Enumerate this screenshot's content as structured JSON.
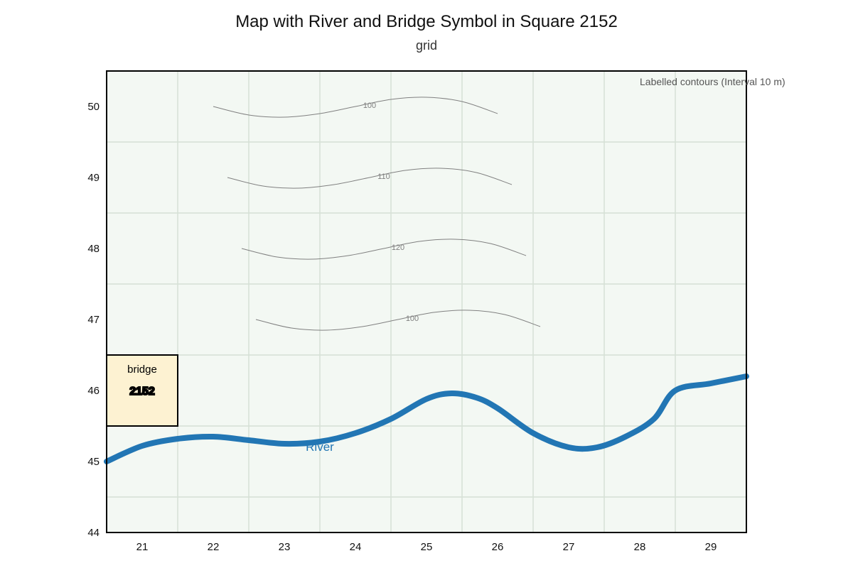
{
  "title": "Map with River and Bridge Symbol in Square 2152",
  "subtitle": "grid",
  "legend_note": "Labelled contours (Interval 10 m)",
  "colors": {
    "map_background": "#f3f8f3",
    "grid": "#d6e0d6",
    "frame": "#000000",
    "river": "#2276b4",
    "river_label": "#2276b4",
    "contour": "#808080",
    "bridge_fill": "#fdf2d2"
  },
  "chart_data": {
    "type": "map",
    "title": "Map with River and Bridge Symbol in Square 2152",
    "subtitle": "grid",
    "x_ticks": [
      "21",
      "22",
      "23",
      "24",
      "25",
      "26",
      "27",
      "28",
      "29"
    ],
    "y_ticks": [
      "44",
      "45",
      "46",
      "47",
      "48",
      "49",
      "50"
    ],
    "xlim": [
      20.5,
      29.5
    ],
    "ylim": [
      44,
      50.5
    ],
    "grid": true,
    "contours": [
      {
        "label": "100",
        "label_x": 24.2,
        "points": [
          [
            22.0,
            50.0
          ],
          [
            22.5,
            49.88
          ],
          [
            23.0,
            49.85
          ],
          [
            23.5,
            49.9
          ],
          [
            24.0,
            50.0
          ],
          [
            24.5,
            50.1
          ],
          [
            25.0,
            50.13
          ],
          [
            25.5,
            50.07
          ],
          [
            26.0,
            49.9
          ]
        ]
      },
      {
        "label": "110",
        "label_x": 24.4,
        "points": [
          [
            22.2,
            49.0
          ],
          [
            22.7,
            48.88
          ],
          [
            23.2,
            48.85
          ],
          [
            23.7,
            48.9
          ],
          [
            24.2,
            49.0
          ],
          [
            24.7,
            49.1
          ],
          [
            25.2,
            49.13
          ],
          [
            25.7,
            49.07
          ],
          [
            26.2,
            48.9
          ]
        ]
      },
      {
        "label": "120",
        "label_x": 24.6,
        "points": [
          [
            22.4,
            48.0
          ],
          [
            22.9,
            47.88
          ],
          [
            23.4,
            47.85
          ],
          [
            23.9,
            47.9
          ],
          [
            24.4,
            48.0
          ],
          [
            24.9,
            48.1
          ],
          [
            25.4,
            48.13
          ],
          [
            25.9,
            48.07
          ],
          [
            26.4,
            47.9
          ]
        ]
      },
      {
        "label": "100",
        "label_x": 24.8,
        "points": [
          [
            22.6,
            47.0
          ],
          [
            23.1,
            46.88
          ],
          [
            23.6,
            46.85
          ],
          [
            24.1,
            46.9
          ],
          [
            24.6,
            47.0
          ],
          [
            25.1,
            47.1
          ],
          [
            25.6,
            47.13
          ],
          [
            26.1,
            47.07
          ],
          [
            26.6,
            46.9
          ]
        ]
      }
    ],
    "river": {
      "label": "River",
      "label_pos": [
        23.5,
        45.15
      ],
      "points": [
        [
          20.5,
          45.0
        ],
        [
          21.0,
          45.22
        ],
        [
          21.5,
          45.32
        ],
        [
          22.0,
          45.35
        ],
        [
          22.5,
          45.3
        ],
        [
          23.0,
          45.25
        ],
        [
          23.5,
          45.28
        ],
        [
          24.0,
          45.4
        ],
        [
          24.5,
          45.6
        ],
        [
          25.0,
          45.88
        ],
        [
          25.35,
          45.96
        ],
        [
          25.7,
          45.9
        ],
        [
          26.0,
          45.75
        ],
        [
          26.5,
          45.4
        ],
        [
          27.0,
          45.2
        ],
        [
          27.4,
          45.2
        ],
        [
          27.8,
          45.35
        ],
        [
          28.2,
          45.6
        ],
        [
          28.5,
          46.0
        ],
        [
          29.0,
          46.1
        ],
        [
          29.5,
          46.2
        ]
      ]
    },
    "bridge": {
      "label": "bridge",
      "code": "2152",
      "square": [
        [
          20.5,
          45.5
        ],
        [
          21.5,
          46.5
        ]
      ]
    }
  }
}
